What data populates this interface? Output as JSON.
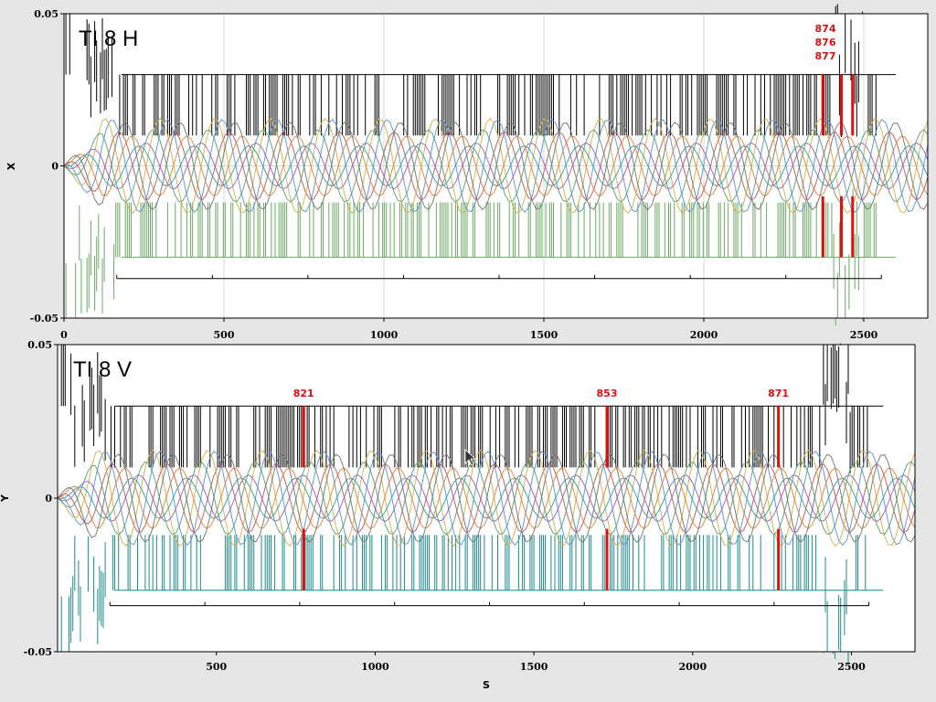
{
  "chart_data": [
    {
      "type": "line",
      "title": "TI 8 H",
      "xlabel": "",
      "ylabel": "X",
      "xlim": [
        0,
        2700
      ],
      "ylim": [
        -0.05,
        0.05
      ],
      "x_ticks": [
        0,
        500,
        1000,
        1500,
        2000,
        2500
      ],
      "x_tick_labels": [
        "0",
        "500",
        "1000",
        "1500",
        "2000",
        "2500"
      ],
      "y_ticks": [
        -0.05,
        0,
        0.05
      ],
      "y_tick_labels": [
        "-0.05",
        "0",
        "0.05"
      ],
      "grid": true,
      "aperture_color": "#000000",
      "lower_color": "#6aaa64",
      "highlight_color": "#e01010",
      "annotations": [
        {
          "text": "874",
          "s": 2380
        },
        {
          "text": "876",
          "s": 2380
        },
        {
          "text": "877",
          "s": 2380
        }
      ],
      "highlight_s": [
        2372,
        2430,
        2465
      ],
      "section_marker": {
        "start": 165,
        "end": 2555,
        "y": -0.037
      }
    },
    {
      "type": "line",
      "title": "TI 8 V",
      "xlabel": "S",
      "ylabel": "Y",
      "xlim": [
        0,
        2700
      ],
      "ylim": [
        -0.05,
        0.05
      ],
      "x_ticks": [
        500,
        1000,
        1500,
        2000,
        2500
      ],
      "x_tick_labels": [
        "500",
        "1000",
        "1500",
        "2000",
        "2500"
      ],
      "y_ticks": [
        -0.05,
        0,
        0.05
      ],
      "y_tick_labels": [
        "-0.05",
        "0",
        "0.05"
      ],
      "grid": false,
      "aperture_color": "#000000",
      "lower_color": "#1f8b8b",
      "highlight_color": "#e01010",
      "annotations": [
        {
          "text": "821",
          "s": 775
        },
        {
          "text": "853",
          "s": 1730
        },
        {
          "text": "871",
          "s": 2270
        }
      ],
      "highlight_s": [
        775,
        1730,
        2270
      ],
      "section_marker": {
        "start": 165,
        "end": 2555,
        "y": -0.035
      }
    }
  ]
}
